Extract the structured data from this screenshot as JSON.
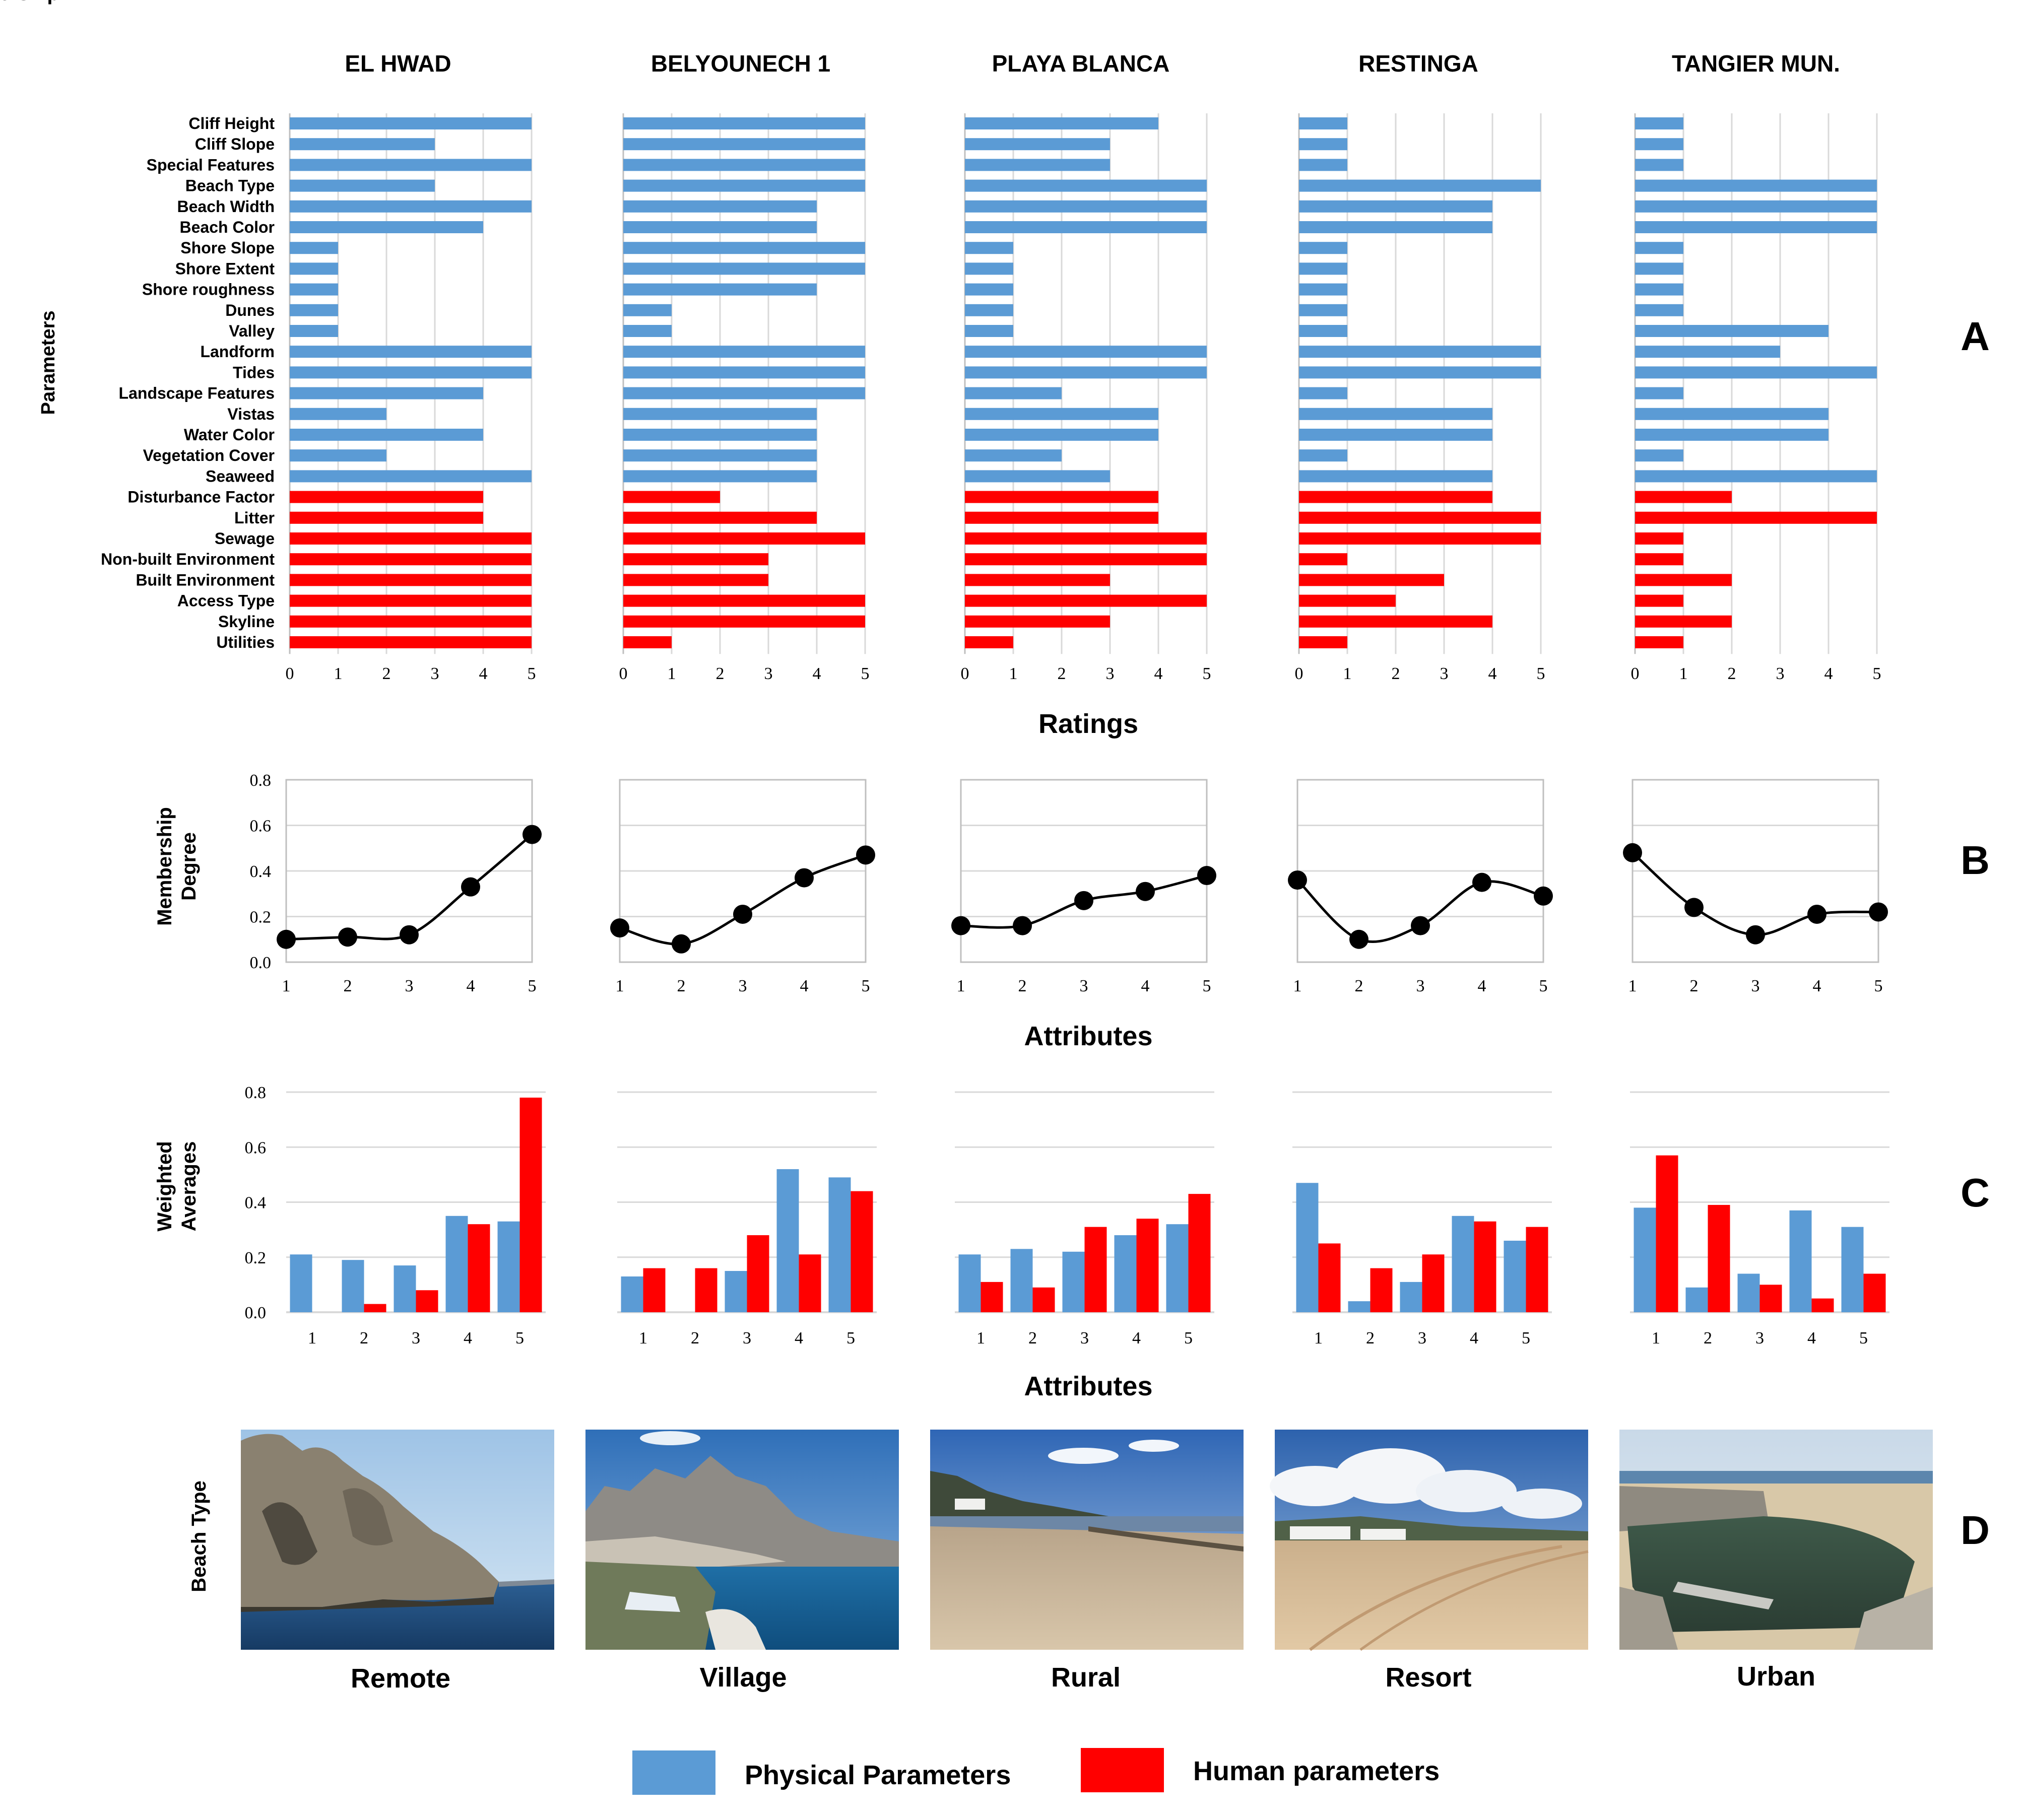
{
  "colors": {
    "physical": "#5B9BD5",
    "human": "#FF0000",
    "grid": "#D9D9D9",
    "axis": "#BFBFBF",
    "text": "#000000"
  },
  "sites": [
    "EL HWAD",
    "BELYOUNECH 1",
    "PLAYA BLANCA",
    "RESTINGA",
    "TANGIER MUN."
  ],
  "panel_letters": [
    "A",
    "B",
    "C",
    "D"
  ],
  "panel_a": {
    "y_title": "Parameters",
    "x_title": "Ratings",
    "ticks": [
      "0",
      "1",
      "2",
      "3",
      "4",
      "5"
    ],
    "parameters": [
      "Cliff Height",
      "Cliff Slope",
      "Special Features",
      "Beach Type",
      "Beach Width",
      "Beach Color",
      "Shore Slope",
      "Shore Extent",
      "Shore roughness",
      "Dunes",
      "Valley",
      "Landform",
      "Tides",
      "Landscape Features",
      "Vistas",
      "Water Color",
      "Vegetation Cover",
      "Seaweed",
      "Disturbance Factor",
      "Litter",
      "Sewage",
      "Non-built Environment",
      "Built Environment",
      "Access Type",
      "Skyline",
      "Utilities"
    ],
    "physical_count": 18
  },
  "panel_b": {
    "y_title": [
      "Membership",
      "Degree"
    ],
    "x_title": "Attributes",
    "y_ticks": [
      "0.8",
      "0.6",
      "0.4",
      "0.2",
      "0.0"
    ],
    "x_ticks": [
      "1",
      "2",
      "3",
      "4",
      "5"
    ]
  },
  "panel_c": {
    "y_title": [
      "Weighted",
      "Averages"
    ],
    "x_title": "Attributes",
    "y_ticks": [
      "0.8",
      "0.6",
      "0.4",
      "0.2",
      "0.0"
    ],
    "x_ticks": [
      "1",
      "2",
      "3",
      "4",
      "5"
    ]
  },
  "panel_d": {
    "y_title": "Beach Type",
    "types": [
      "Remote",
      "Village",
      "Rural",
      "Resort",
      "Urban"
    ],
    "photo_icons": [
      "cliff-sea-photo",
      "coastal-village-photo",
      "rural-beach-photo",
      "resort-beach-photo",
      "urban-beach-photo"
    ]
  },
  "legend": {
    "physical": "Physical Parameters",
    "human": "Human parameters"
  },
  "chart_data": [
    {
      "panel": "A",
      "type": "bar",
      "orientation": "horizontal",
      "xlabel": "Ratings",
      "ylabel": "Parameters",
      "xlim": [
        0,
        5
      ],
      "categories": [
        "Cliff Height",
        "Cliff Slope",
        "Special Features",
        "Beach Type",
        "Beach Width",
        "Beach Color",
        "Shore Slope",
        "Shore Extent",
        "Shore roughness",
        "Dunes",
        "Valley",
        "Landform",
        "Tides",
        "Landscape Features",
        "Vistas",
        "Water Color",
        "Vegetation Cover",
        "Seaweed",
        "Disturbance Factor",
        "Litter",
        "Sewage",
        "Non-built Environment",
        "Built Environment",
        "Access Type",
        "Skyline",
        "Utilities"
      ],
      "series": [
        {
          "name": "EL HWAD",
          "values": [
            5,
            3,
            5,
            3,
            5,
            4,
            1,
            1,
            1,
            1,
            1,
            5,
            5,
            4,
            2,
            4,
            2,
            5,
            4,
            4,
            5,
            5,
            5,
            5,
            5,
            5
          ]
        },
        {
          "name": "BELYOUNECH 1",
          "values": [
            5,
            5,
            5,
            5,
            4,
            4,
            5,
            5,
            4,
            1,
            1,
            5,
            5,
            5,
            4,
            4,
            4,
            4,
            2,
            4,
            5,
            3,
            3,
            5,
            5,
            1
          ]
        },
        {
          "name": "PLAYA BLANCA",
          "values": [
            4,
            3,
            3,
            5,
            5,
            5,
            1,
            1,
            1,
            1,
            1,
            5,
            5,
            2,
            4,
            4,
            2,
            3,
            4,
            4,
            5,
            5,
            3,
            5,
            3,
            1
          ]
        },
        {
          "name": "RESTINGA",
          "values": [
            1,
            1,
            1,
            5,
            4,
            4,
            1,
            1,
            1,
            1,
            1,
            5,
            5,
            1,
            4,
            4,
            1,
            4,
            4,
            5,
            5,
            1,
            3,
            2,
            4,
            1
          ]
        },
        {
          "name": "TANGIER MUN.",
          "values": [
            1,
            1,
            1,
            5,
            5,
            5,
            1,
            1,
            1,
            1,
            4,
            3,
            5,
            1,
            4,
            4,
            1,
            5,
            2,
            5,
            1,
            1,
            2,
            1,
            2,
            1
          ]
        }
      ],
      "legend": [
        "Physical Parameters",
        "Human parameters"
      ]
    },
    {
      "panel": "B",
      "type": "line",
      "xlabel": "Attributes",
      "ylabel": "Membership Degree",
      "ylim": [
        0,
        0.8
      ],
      "x": [
        1,
        2,
        3,
        4,
        5
      ],
      "series": [
        {
          "name": "EL HWAD",
          "values": [
            0.1,
            0.11,
            0.12,
            0.33,
            0.56
          ]
        },
        {
          "name": "BELYOUNECH 1",
          "values": [
            0.15,
            0.08,
            0.21,
            0.37,
            0.47
          ]
        },
        {
          "name": "PLAYA BLANCA",
          "values": [
            0.16,
            0.16,
            0.27,
            0.31,
            0.38
          ]
        },
        {
          "name": "RESTINGA",
          "values": [
            0.36,
            0.1,
            0.16,
            0.35,
            0.29
          ]
        },
        {
          "name": "TANGIER MUN.",
          "values": [
            0.48,
            0.24,
            0.12,
            0.21,
            0.22
          ]
        }
      ]
    },
    {
      "panel": "C",
      "type": "bar",
      "xlabel": "Attributes",
      "ylabel": "Weighted Averages",
      "ylim": [
        0,
        0.8
      ],
      "categories": [
        "1",
        "2",
        "3",
        "4",
        "5"
      ],
      "series": [
        {
          "name": "EL HWAD",
          "physical": [
            0.21,
            0.19,
            0.17,
            0.35,
            0.33
          ],
          "human": [
            0.0,
            0.03,
            0.08,
            0.32,
            0.78
          ]
        },
        {
          "name": "BELYOUNECH 1",
          "physical": [
            0.13,
            0.0,
            0.15,
            0.52,
            0.49
          ],
          "human": [
            0.16,
            0.16,
            0.28,
            0.21,
            0.44
          ]
        },
        {
          "name": "PLAYA BLANCA",
          "physical": [
            0.21,
            0.23,
            0.22,
            0.28,
            0.32
          ],
          "human": [
            0.11,
            0.09,
            0.31,
            0.34,
            0.43
          ]
        },
        {
          "name": "RESTINGA",
          "physical": [
            0.47,
            0.04,
            0.11,
            0.35,
            0.26
          ],
          "human": [
            0.25,
            0.16,
            0.21,
            0.33,
            0.31
          ]
        },
        {
          "name": "TANGIER MUN.",
          "physical": [
            0.38,
            0.09,
            0.14,
            0.37,
            0.31
          ],
          "human": [
            0.57,
            0.39,
            0.1,
            0.05,
            0.14
          ]
        }
      ],
      "legend": [
        "Physical Parameters",
        "Human parameters"
      ]
    }
  ]
}
